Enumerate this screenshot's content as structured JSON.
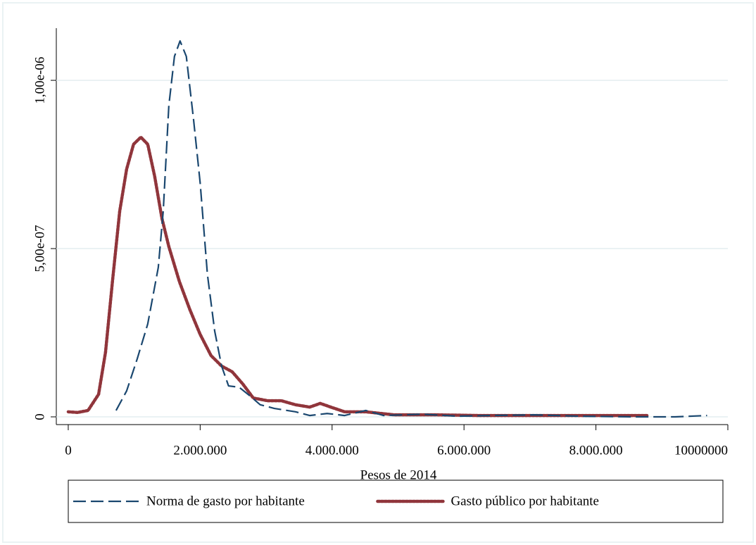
{
  "chart_data": {
    "type": "line",
    "x_label": "Pesos de 2014",
    "xlim": [
      -181000,
      10000000
    ],
    "ylim": [
      -2.3e-08,
      1.155e-06
    ],
    "xticks": [
      0,
      {
        "value": 2000000,
        "label": "2.000.000"
      },
      {
        "value": 4000000,
        "label": "4.000.000"
      },
      {
        "value": 6000000,
        "label": "6.000.000"
      },
      {
        "value": 8000000,
        "label": "8.000.000"
      },
      {
        "value": 10000000,
        "label": "10000000"
      }
    ],
    "yticks": [
      0,
      {
        "value": 5e-07,
        "label": "5,00e-07"
      },
      {
        "value": 1e-06,
        "label": "1,00e-06"
      }
    ],
    "grid": true,
    "legend": "bottom",
    "series": [
      {
        "name": "Norma de gasto por habitante",
        "color": "#1a476f",
        "line_style": "dashed",
        "x": [
          725000,
          885000,
          1045000,
          1205000,
          1365000,
          1440000,
          1525000,
          1610000,
          1695000,
          1790000,
          1900000,
          2000000,
          2110000,
          2220000,
          2325000,
          2430000,
          2590000,
          2750000,
          2910000,
          3125000,
          3445000,
          3660000,
          3925000,
          4190000,
          4510000,
          4780000,
          5365000,
          5900000,
          6430000,
          7070000,
          7710000,
          8565000,
          9200000,
          9685000
        ],
        "values": [
          1.9e-08,
          7.7e-08,
          1.72e-07,
          2.76e-07,
          4.44e-07,
          6.11e-07,
          9.25e-07,
          1.071e-06,
          1.117e-06,
          1.071e-06,
          8.83e-07,
          6.95e-07,
          4.23e-07,
          2.55e-07,
          1.51e-07,
          9.2e-08,
          8.8e-08,
          6.3e-08,
          3.6e-08,
          2.5e-08,
          1.5e-08,
          4e-09,
          1e-08,
          4e-09,
          1.9e-08,
          4e-09,
          8e-09,
          2e-09,
          4e-09,
          6e-09,
          2e-09,
          0,
          0,
          4e-09
        ]
      },
      {
        "name": "Gasto público por habitante",
        "color": "#90353b",
        "line_style": "dotted",
        "x": [
          0,
          140000,
          300000,
          460000,
          565000,
          670000,
          780000,
          885000,
          990000,
          1100000,
          1205000,
          1310000,
          1420000,
          1525000,
          1685000,
          1845000,
          2000000,
          2165000,
          2325000,
          2485000,
          2645000,
          2805000,
          3020000,
          3230000,
          3445000,
          3660000,
          3820000,
          3980000,
          4190000,
          4510000,
          4940000,
          5580000,
          6220000,
          6860000,
          7500000,
          8140000,
          8780000
        ],
        "values": [
          1.5e-08,
          1.3e-08,
          1.9e-08,
          6.7e-08,
          1.92e-07,
          4.02e-07,
          6.11e-07,
          7.36e-07,
          8.1e-07,
          8.31e-07,
          8.1e-07,
          7.15e-07,
          5.9e-07,
          5.06e-07,
          4.02e-07,
          3.18e-07,
          2.45e-07,
          1.82e-07,
          1.51e-07,
          1.34e-07,
          9.8e-08,
          5.6e-08,
          4.8e-08,
          4.8e-08,
          3.6e-08,
          2.9e-08,
          4e-08,
          2.9e-08,
          1.5e-08,
          1.5e-08,
          6e-09,
          6e-09,
          4e-09,
          4e-09,
          4e-09,
          4e-09,
          4e-09
        ]
      }
    ]
  }
}
